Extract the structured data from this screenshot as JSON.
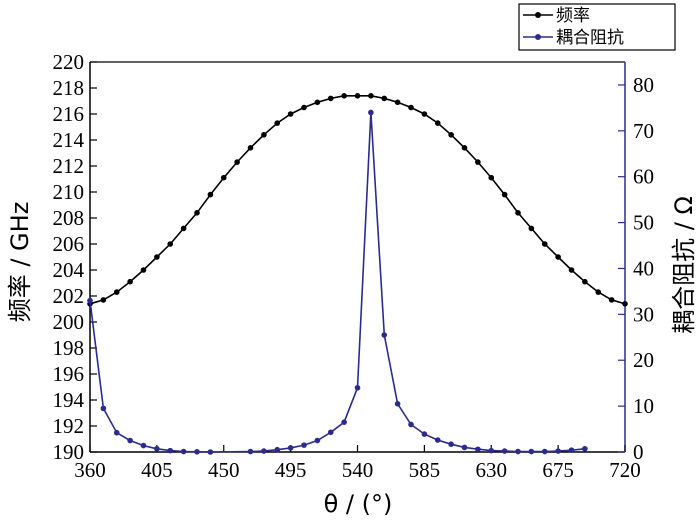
{
  "chart_data": {
    "type": "line",
    "xlabel": "θ / (°)",
    "ylabel_left": "频率 / GHz",
    "ylabel_right": "耦合阻抗 / Ω",
    "xlim": [
      360,
      720
    ],
    "xticks": [
      360,
      405,
      450,
      495,
      540,
      585,
      630,
      675,
      720
    ],
    "ylim_left": [
      190,
      220
    ],
    "yticks_left": [
      190,
      192,
      194,
      196,
      198,
      200,
      202,
      204,
      206,
      208,
      210,
      212,
      214,
      216,
      218,
      220
    ],
    "ylim_right": [
      0,
      85
    ],
    "yticks_right": [
      0,
      10,
      20,
      30,
      40,
      50,
      60,
      70,
      80
    ],
    "legend_position": "top-right",
    "colors": {
      "series1": "#000000",
      "series2": "#2b2b8f"
    },
    "series": [
      {
        "name": "频率",
        "axis": "left",
        "x": [
          360,
          369,
          378,
          387,
          396,
          405,
          414,
          423,
          432,
          441,
          450,
          459,
          468,
          477,
          486,
          495,
          504,
          513,
          522,
          531,
          540,
          549,
          558,
          567,
          576,
          585,
          594,
          603,
          612,
          621,
          630,
          639,
          648,
          657,
          666,
          675,
          684,
          693,
          702,
          711,
          720
        ],
        "y": [
          201.4,
          201.7,
          202.3,
          203.1,
          204.0,
          205.0,
          206.0,
          207.2,
          208.4,
          209.8,
          211.1,
          212.3,
          213.4,
          214.4,
          215.3,
          216.0,
          216.5,
          216.9,
          217.2,
          217.4,
          217.4,
          217.4,
          217.2,
          216.9,
          216.5,
          216.0,
          215.3,
          214.4,
          213.4,
          212.3,
          211.1,
          209.8,
          208.4,
          207.2,
          206.0,
          205.0,
          204.0,
          203.1,
          202.3,
          201.7,
          201.4
        ]
      },
      {
        "name": "耦合阻抗",
        "axis": "right",
        "x": [
          360,
          369,
          378,
          387,
          396,
          405,
          414,
          423,
          432,
          441,
          468,
          477,
          486,
          495,
          504,
          513,
          522,
          531,
          540,
          549,
          558,
          567,
          576,
          585,
          594,
          603,
          612,
          621,
          630,
          639,
          648,
          657,
          666,
          675,
          684,
          693
        ],
        "y": [
          33.0,
          9.5,
          4.2,
          2.5,
          1.4,
          0.7,
          0.3,
          0.1,
          0.05,
          0.0,
          0.1,
          0.2,
          0.5,
          0.9,
          1.5,
          2.5,
          4.3,
          6.5,
          14.0,
          74.0,
          25.5,
          10.5,
          6.0,
          3.9,
          2.6,
          1.7,
          1.0,
          0.6,
          0.3,
          0.2,
          0.1,
          0.1,
          0.1,
          0.2,
          0.4,
          0.7
        ]
      }
    ]
  }
}
